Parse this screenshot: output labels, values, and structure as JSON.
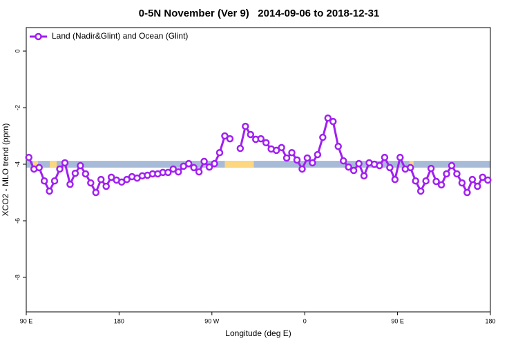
{
  "chart_data": {
    "type": "line",
    "title": "0-5N November (Ver 9)   2014-09-06 to 2018-12-31",
    "x_label": "Longitude (deg E)",
    "y_label": "XCO2 - MLO trend (ppm)",
    "x": [
      92.5,
      97.5,
      102.5,
      107.5,
      112.5,
      117.5,
      122.5,
      127.5,
      132.5,
      137.5,
      142.5,
      147.5,
      152.5,
      157.5,
      162.5,
      167.5,
      172.5,
      177.5,
      182.5,
      187.5,
      192.5,
      197.5,
      202.5,
      207.5,
      212.5,
      217.5,
      222.5,
      227.5,
      232.5,
      237.5,
      242.5,
      247.5,
      252.5,
      257.5,
      262.5,
      267.5,
      272.5,
      277.5,
      282.5,
      287.5,
      292.5,
      297.5,
      302.5,
      307.5,
      312.5,
      317.5,
      322.5,
      327.5,
      332.5,
      337.5,
      342.5,
      347.5,
      352.5,
      357.5,
      362.5,
      367.5,
      372.5,
      377.5,
      382.5,
      387.5,
      392.5,
      397.5,
      402.5,
      407.5,
      412.5,
      417.5,
      422.5,
      427.5,
      432.5,
      437.5,
      442.5,
      447.5,
      452.5,
      457.5,
      462.5,
      467.5,
      472.5,
      477.5,
      482.5,
      487.5,
      492.5,
      497.5,
      502.5,
      507.5,
      512.5,
      517.5,
      522.5,
      527.5,
      532.5,
      537.5
    ],
    "series": [
      {
        "name": "Land (Nadir&Glint) and Ocean (Glint)",
        "color": "#a020f0",
        "values": [
          -3.76,
          -4.17,
          -4.12,
          -4.59,
          -4.95,
          -4.59,
          -4.17,
          -3.95,
          -4.71,
          -4.32,
          -4.05,
          -4.34,
          -4.66,
          -5.0,
          -4.54,
          -4.78,
          -4.46,
          -4.56,
          -4.63,
          -4.54,
          -4.44,
          -4.49,
          -4.41,
          -4.39,
          -4.34,
          -4.34,
          -4.29,
          -4.29,
          -4.17,
          -4.27,
          -4.07,
          -3.98,
          -4.12,
          -4.27,
          -3.9,
          -4.1,
          -3.98,
          -3.59,
          -3.0,
          -3.1,
          null,
          -3.44,
          -2.66,
          -2.95,
          -3.12,
          -3.1,
          -3.24,
          -3.46,
          -3.51,
          -3.41,
          -3.78,
          -3.59,
          -3.85,
          -4.17,
          -3.78,
          -3.95,
          -3.66,
          -3.05,
          -2.37,
          -2.49,
          -3.37,
          -3.88,
          -4.1,
          -4.22,
          -3.98,
          -4.41,
          -3.95,
          -4.0,
          -4.05,
          -3.76,
          -4.12,
          -4.54,
          -3.76,
          -4.17,
          -4.12,
          -4.59,
          -4.95,
          -4.59,
          -4.15,
          -4.61,
          -4.73,
          -4.34,
          -4.05,
          -4.34,
          -4.66,
          -5.0,
          -4.54,
          -4.78,
          -4.46,
          -4.56
        ]
      }
    ],
    "band": {
      "ylim": [
        -3.88,
        -4.12
      ],
      "color": "#a7bbd9",
      "land_color": "#fcd77f",
      "land": [
        [
          96.7,
          101.4
        ],
        [
          112.8,
          119.5
        ],
        [
          282.5,
          310.6
        ],
        [
          461.5,
          465.5
        ]
      ]
    },
    "xlim": [
      90,
      540
    ],
    "xticks": [
      {
        "value": 90,
        "label": "90 E"
      },
      180,
      {
        "value": 270,
        "label": "90 W"
      },
      {
        "value": 360,
        "label": "0"
      },
      {
        "value": 450,
        "label": "90 E"
      },
      {
        "value": 540,
        "label": "180"
      }
    ],
    "ylim": [
      -9.22,
      0.83
    ],
    "yticks": [
      0,
      -2,
      -4,
      -6,
      -8
    ],
    "legend": "top-left"
  }
}
